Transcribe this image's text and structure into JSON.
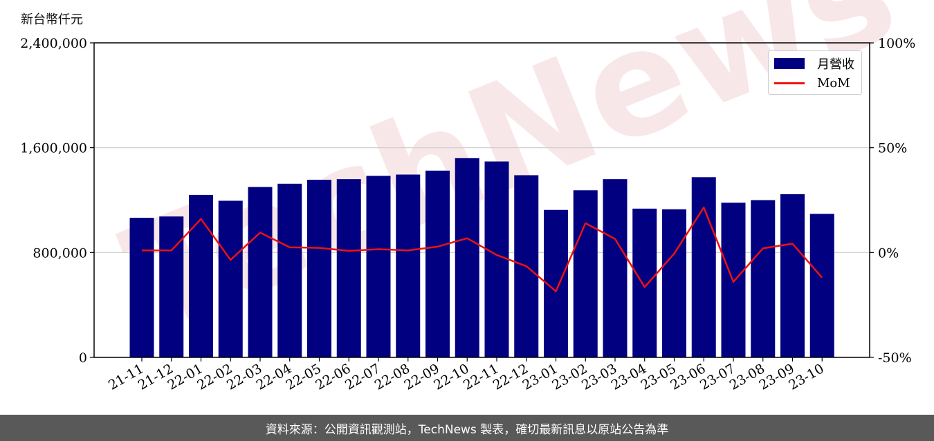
{
  "unit_label": "新台幣仟元",
  "footer_text": "資料來源：公開資訊觀測站，TechNews 製表，確切最新訊息以原站公告為準",
  "watermark_text": "TechNews",
  "colors": {
    "bar": "#000080",
    "line": "#ee1111",
    "footer_bg": "#595959",
    "grid": "#cccccc"
  },
  "chart_data": {
    "type": "bar",
    "title": "",
    "categories": [
      "21-11",
      "21-12",
      "22-01",
      "22-02",
      "22-03",
      "22-04",
      "22-05",
      "22-06",
      "22-07",
      "22-08",
      "22-09",
      "22-10",
      "22-11",
      "22-12",
      "23-01",
      "23-02",
      "23-03",
      "23-04",
      "23-05",
      "23-06",
      "23-07",
      "23-08",
      "23-09",
      "23-10"
    ],
    "series": [
      {
        "name": "月營收",
        "type": "bar",
        "axis": "left",
        "values": [
          1065000,
          1075000,
          1240000,
          1195000,
          1300000,
          1325000,
          1355000,
          1360000,
          1385000,
          1395000,
          1425000,
          1520000,
          1495000,
          1390000,
          1125000,
          1275000,
          1360000,
          1135000,
          1130000,
          1375000,
          1180000,
          1200000,
          1245000,
          1095000
        ]
      },
      {
        "name": "MoM",
        "type": "line",
        "axis": "right",
        "values": [
          1.0,
          1.0,
          16.0,
          -3.5,
          9.5,
          2.5,
          2.2,
          0.8,
          1.6,
          1.0,
          2.8,
          6.8,
          -1.2,
          -6.5,
          -18.5,
          14.0,
          6.5,
          -16.5,
          -0.5,
          21.5,
          -14.0,
          2.0,
          4.2,
          -12.0
        ]
      }
    ],
    "ylim": [
      0,
      2400000
    ],
    "y_ticks": [
      "0",
      "800,000",
      "1,600,000",
      "2,400,000"
    ],
    "y2lim": [
      -50,
      100
    ],
    "y2_ticks": [
      "-50%",
      "0%",
      "50%",
      "100%"
    ],
    "grid": "horizontal",
    "legend_position": "top-right"
  }
}
